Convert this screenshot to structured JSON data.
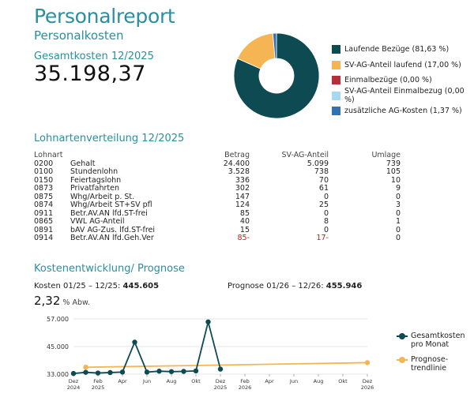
{
  "header": {
    "title": "Personalreport",
    "subtitle": "Personalkosten",
    "total_label": "Gesamtkosten 12/2025",
    "total_value": "35.198,37"
  },
  "distribution": {
    "legend": [
      {
        "label": "Laufende Bezüge (81,63 %)",
        "color": "#0e4a52",
        "percent": 81.63
      },
      {
        "label": "SV-AG-Anteil laufend (17,00 %)",
        "color": "#f5b553",
        "percent": 17.0
      },
      {
        "label": "Einmalbezüge (0,00 %)",
        "color": "#b3313a",
        "percent": 0.0
      },
      {
        "label": "SV-AG-Anteil Einmalbezug (0,00 %)",
        "color": "#a8d8f0",
        "percent": 0.0
      },
      {
        "label": "zusätzliche AG-Kosten (1,37 %)",
        "color": "#3172b0",
        "percent": 1.37
      }
    ]
  },
  "lohnarten": {
    "title": "Lohnartenverteilung 12/2025",
    "headers": {
      "code": "Lohnart",
      "betrag": "Betrag",
      "sv": "SV-AG-Anteil",
      "umlage": "Umlage"
    },
    "rows": [
      {
        "code": "0200",
        "name": "Gehalt",
        "betrag": "24.400",
        "sv": "5.099",
        "umlage": "739"
      },
      {
        "code": "0100",
        "name": "Stundenlohn",
        "betrag": "3.528",
        "sv": "738",
        "umlage": "105"
      },
      {
        "code": "0150",
        "name": "Feiertagslohn",
        "betrag": "336",
        "sv": "70",
        "umlage": "10"
      },
      {
        "code": "0873",
        "name": "Privatfahrten",
        "betrag": "302",
        "sv": "61",
        "umlage": "9"
      },
      {
        "code": "0875",
        "name": "Whg/Arbeit p. St.",
        "betrag": "147",
        "sv": "0",
        "umlage": "0"
      },
      {
        "code": "0874",
        "name": "Whg/Arbeit ST+SV pfl",
        "betrag": "124",
        "sv": "25",
        "umlage": "3"
      },
      {
        "code": "0911",
        "name": "Betr.AV.AN lfd.ST-frei",
        "betrag": "85",
        "sv": "0",
        "umlage": "0"
      },
      {
        "code": "0865",
        "name": "VWL AG-Anteil",
        "betrag": "40",
        "sv": "8",
        "umlage": "1"
      },
      {
        "code": "0891",
        "name": "bAV AG-Zus. lfd.ST-frei",
        "betrag": "15",
        "sv": "0",
        "umlage": "0"
      },
      {
        "code": "0914",
        "name": "Betr.AV.AN lfd.Geh.Ver",
        "betrag": "85-",
        "sv": "17-",
        "umlage": "0",
        "negative": true
      }
    ]
  },
  "kosten": {
    "title": "Kostenentwicklung/ Prognose",
    "kosten_label": "Kosten 01/25 – 12/25:",
    "kosten_value": "445.605",
    "prognose_label": "Prognose 01/26 – 12/26:",
    "prognose_value": "455.946",
    "abw_value": "2,32",
    "abw_unit": "% Abw."
  },
  "chart_data": {
    "type": "line",
    "y_ticks": [
      "57.000",
      "45.000",
      "33.000"
    ],
    "ylim": [
      33000,
      57000
    ],
    "x_ticks": [
      {
        "label": [
          "Dez",
          "2024"
        ],
        "month": 0
      },
      {
        "label": [
          "Feb",
          "2025"
        ],
        "month": 2
      },
      {
        "label": [
          "Apr"
        ],
        "month": 4
      },
      {
        "label": [
          "Jun"
        ],
        "month": 6
      },
      {
        "label": [
          "Aug"
        ],
        "month": 8
      },
      {
        "label": [
          "Okt"
        ],
        "month": 10
      },
      {
        "label": [
          "Dez",
          "2025"
        ],
        "month": 12
      },
      {
        "label": [
          "Feb",
          "2026"
        ],
        "month": 14
      },
      {
        "label": [
          "Apr"
        ],
        "month": 16
      },
      {
        "label": [
          "Jun"
        ],
        "month": 18
      },
      {
        "label": [
          "Aug"
        ],
        "month": 20
      },
      {
        "label": [
          "Okt"
        ],
        "month": 22
      },
      {
        "label": [
          "Dez",
          "2026"
        ],
        "month": 24
      }
    ],
    "xlim": [
      0,
      24
    ],
    "series": [
      {
        "name": "Gesamtkosten pro Monat",
        "color": "#0e4a52",
        "points": [
          [
            0,
            33300
          ],
          [
            1,
            33800
          ],
          [
            2,
            33500
          ],
          [
            3,
            33700
          ],
          [
            4,
            33900
          ],
          [
            5,
            46900
          ],
          [
            6,
            33900
          ],
          [
            7,
            34300
          ],
          [
            8,
            34100
          ],
          [
            9,
            34200
          ],
          [
            10,
            34400
          ],
          [
            11,
            55700
          ],
          [
            12,
            35200
          ]
        ]
      },
      {
        "name": "Prognose-trendlinie",
        "color": "#f5b553",
        "points": [
          [
            1,
            36000
          ],
          [
            24,
            38000
          ]
        ]
      }
    ],
    "legend": [
      {
        "label1": "Gesamtkosten",
        "label2": "pro Monat",
        "color": "#0e4a52"
      },
      {
        "label1": "Prognose-",
        "label2": "trendlinie",
        "color": "#f5b553"
      }
    ]
  }
}
